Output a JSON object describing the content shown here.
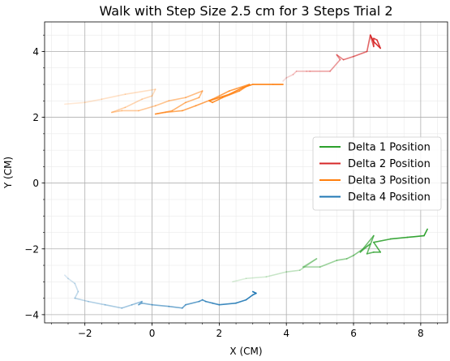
{
  "chart_data": {
    "type": "line",
    "title": "Walk with Step Size 2.5 cm for 3 Steps Trial 2",
    "xlabel": "X (CM)",
    "ylabel": "Y (CM)",
    "xlim": [
      -3.2,
      8.8
    ],
    "ylim": [
      -4.25,
      4.9
    ],
    "xticks": [
      -2,
      0,
      2,
      4,
      6,
      8
    ],
    "yticks": [
      -4,
      -2,
      0,
      2,
      4
    ],
    "grid": true,
    "minor_grid": true,
    "legend_position": "center-right",
    "series": [
      {
        "name": "Delta 1 Position",
        "color": "#2ca02c",
        "points": [
          [
            2.4,
            -3.0
          ],
          [
            2.8,
            -2.9
          ],
          [
            3.4,
            -2.85
          ],
          [
            4.0,
            -2.7
          ],
          [
            4.4,
            -2.65
          ],
          [
            4.9,
            -2.3
          ],
          [
            4.5,
            -2.55
          ],
          [
            5.0,
            -2.55
          ],
          [
            5.5,
            -2.35
          ],
          [
            5.8,
            -2.3
          ],
          [
            6.0,
            -2.2
          ],
          [
            6.5,
            -1.85
          ],
          [
            6.2,
            -2.1
          ],
          [
            6.6,
            -1.6
          ],
          [
            6.4,
            -2.15
          ],
          [
            6.6,
            -2.1
          ],
          [
            6.8,
            -2.1
          ],
          [
            6.6,
            -1.8
          ],
          [
            7.1,
            -1.7
          ],
          [
            7.6,
            -1.65
          ],
          [
            8.1,
            -1.6
          ],
          [
            8.2,
            -1.4
          ]
        ]
      },
      {
        "name": "Delta 2 Position",
        "color": "#d62728",
        "points": [
          [
            3.9,
            3.1
          ],
          [
            4.0,
            3.2
          ],
          [
            4.2,
            3.3
          ],
          [
            4.3,
            3.4
          ],
          [
            4.6,
            3.4
          ],
          [
            4.7,
            3.4
          ],
          [
            5.3,
            3.4
          ],
          [
            5.6,
            3.75
          ],
          [
            5.5,
            3.9
          ],
          [
            5.7,
            3.75
          ],
          [
            6.0,
            3.85
          ],
          [
            6.4,
            4.0
          ],
          [
            6.5,
            4.5
          ],
          [
            6.6,
            4.15
          ],
          [
            6.6,
            4.4
          ],
          [
            6.7,
            4.35
          ],
          [
            6.8,
            4.1
          ],
          [
            6.6,
            4.3
          ],
          [
            6.5,
            4.5
          ]
        ]
      },
      {
        "name": "Delta 3 Position",
        "color": "#ff7f0e",
        "points": [
          [
            -2.6,
            2.4
          ],
          [
            -2.0,
            2.45
          ],
          [
            -1.5,
            2.55
          ],
          [
            -0.8,
            2.7
          ],
          [
            0.1,
            2.85
          ],
          [
            0.0,
            2.65
          ],
          [
            -0.3,
            2.55
          ],
          [
            -0.8,
            2.3
          ],
          [
            -1.2,
            2.15
          ],
          [
            -0.9,
            2.2
          ],
          [
            -0.4,
            2.2
          ],
          [
            0.1,
            2.35
          ],
          [
            0.5,
            2.5
          ],
          [
            1.0,
            2.6
          ],
          [
            1.5,
            2.8
          ],
          [
            1.4,
            2.6
          ],
          [
            1.0,
            2.45
          ],
          [
            0.6,
            2.2
          ],
          [
            0.1,
            2.1
          ],
          [
            0.4,
            2.15
          ],
          [
            0.9,
            2.2
          ],
          [
            1.3,
            2.35
          ],
          [
            1.8,
            2.55
          ],
          [
            2.3,
            2.8
          ],
          [
            2.9,
            3.0
          ],
          [
            2.6,
            2.8
          ],
          [
            2.1,
            2.6
          ],
          [
            1.8,
            2.45
          ],
          [
            1.7,
            2.5
          ],
          [
            2.3,
            2.7
          ],
          [
            2.7,
            2.9
          ],
          [
            3.0,
            3.0
          ],
          [
            3.6,
            3.0
          ],
          [
            3.9,
            3.0
          ]
        ]
      },
      {
        "name": "Delta 4 Position",
        "color": "#1f77b4",
        "points": [
          [
            -2.6,
            -2.8
          ],
          [
            -2.5,
            -2.9
          ],
          [
            -2.3,
            -3.05
          ],
          [
            -2.2,
            -3.3
          ],
          [
            -2.3,
            -3.5
          ],
          [
            -1.9,
            -3.6
          ],
          [
            -1.4,
            -3.7
          ],
          [
            -0.9,
            -3.8
          ],
          [
            -0.6,
            -3.7
          ],
          [
            -0.3,
            -3.6
          ],
          [
            -0.4,
            -3.7
          ],
          [
            -0.3,
            -3.65
          ],
          [
            0.0,
            -3.7
          ],
          [
            0.5,
            -3.75
          ],
          [
            0.9,
            -3.8
          ],
          [
            1.0,
            -3.7
          ],
          [
            1.4,
            -3.6
          ],
          [
            1.5,
            -3.55
          ],
          [
            1.6,
            -3.6
          ],
          [
            1.8,
            -3.65
          ],
          [
            2.0,
            -3.7
          ],
          [
            2.5,
            -3.65
          ],
          [
            2.8,
            -3.55
          ],
          [
            3.0,
            -3.4
          ],
          [
            3.1,
            -3.35
          ],
          [
            3.0,
            -3.3
          ]
        ]
      }
    ]
  }
}
